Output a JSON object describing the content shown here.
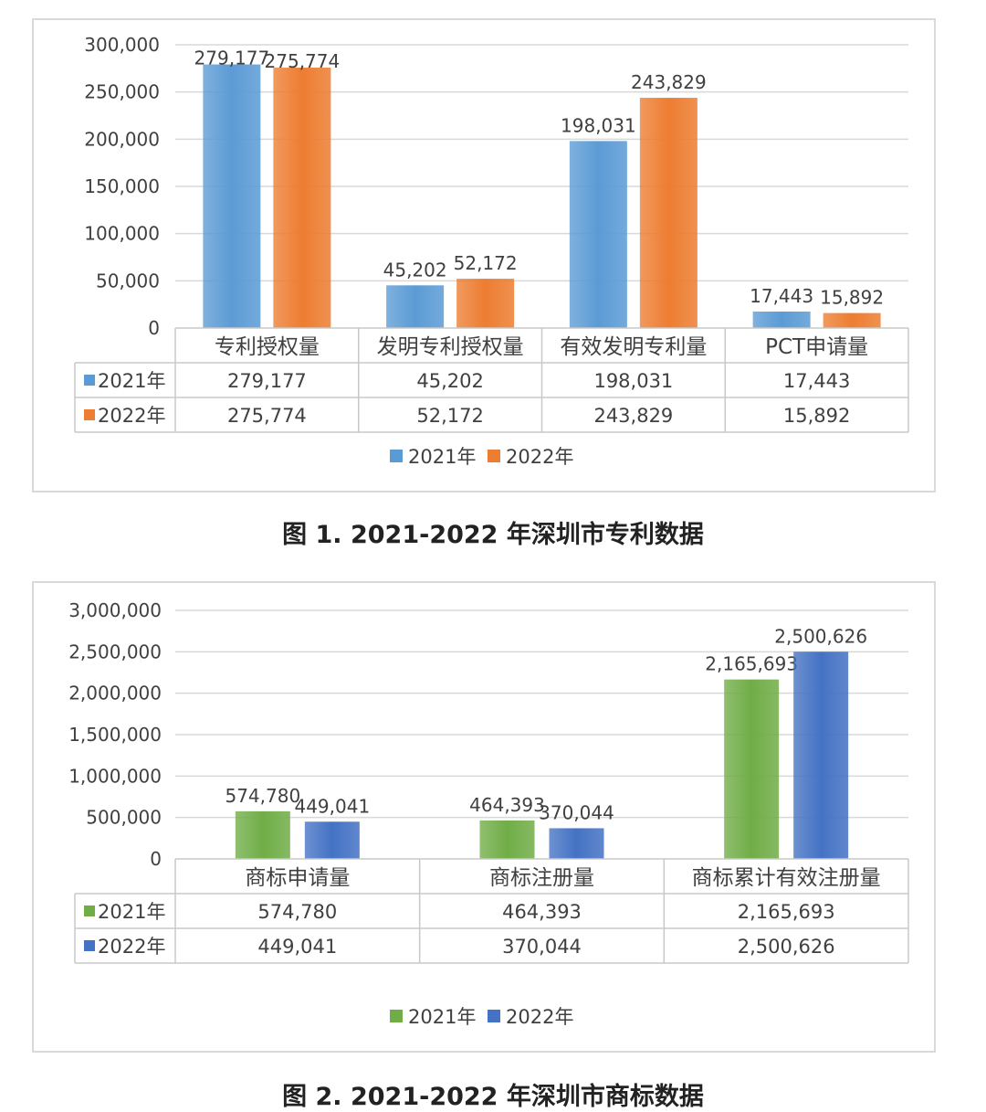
{
  "chart_data": [
    {
      "type": "bar",
      "caption": "图 1.  2021-2022 年深圳市专利数据",
      "categories": [
        "专利授权量",
        "发明专利授权量",
        "有效发明专利量",
        "PCT申请量"
      ],
      "series": [
        {
          "name": "2021年",
          "color": "#5b9bd5",
          "values": [
            279177,
            45202,
            198031,
            17443
          ]
        },
        {
          "name": "2022年",
          "color": "#ed7d31",
          "values": [
            275774,
            52172,
            243829,
            15892
          ]
        }
      ],
      "data_labels": [
        [
          "279,177",
          "45,202",
          "198,031",
          "17,443"
        ],
        [
          "275,774",
          "52,172",
          "243,829",
          "15,892"
        ]
      ],
      "yticks": [
        "0",
        "50,000",
        "100,000",
        "150,000",
        "200,000",
        "250,000",
        "300,000"
      ],
      "ylim": [
        0,
        300000
      ],
      "legend": "bottom",
      "data_table": true,
      "grid": true
    },
    {
      "type": "bar",
      "caption": "图 2.  2021-2022 年深圳市商标数据",
      "categories": [
        "商标申请量",
        "商标注册量",
        "商标累计有效注册量"
      ],
      "series": [
        {
          "name": "2021年",
          "color": "#70ad47",
          "values": [
            574780,
            464393,
            2165693
          ]
        },
        {
          "name": "2022年",
          "color": "#4472c4",
          "values": [
            449041,
            370044,
            2500626
          ]
        }
      ],
      "data_labels": [
        [
          "574,780",
          "464,393",
          "2,165,693"
        ],
        [
          "449,041",
          "370,044",
          "2,500,626"
        ]
      ],
      "yticks": [
        "0",
        "500,000",
        "1,000,000",
        "1,500,000",
        "2,000,000",
        "2,500,000",
        "3,000,000"
      ],
      "ylim": [
        0,
        3000000
      ],
      "legend": "bottom",
      "data_table": true,
      "grid": true
    }
  ]
}
